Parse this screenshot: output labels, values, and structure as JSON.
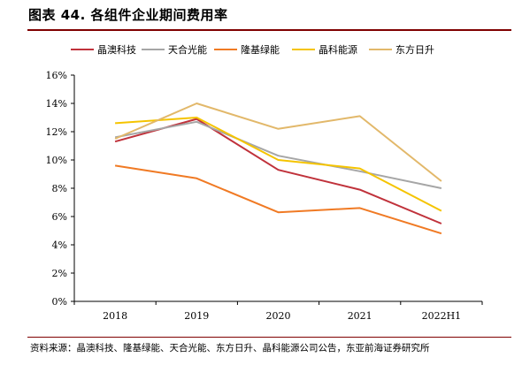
{
  "header": {
    "title": "图表 44. 各组件企业期间费用率"
  },
  "footer": {
    "source": "资料来源：晶澳科技、隆基绿能、天合光能、东方日升、晶科能源公司公告，东亚前海证券研究所"
  },
  "chart_data": {
    "type": "line",
    "categories": [
      "2018",
      "2019",
      "2020",
      "2021",
      "2022H1"
    ],
    "ylim": [
      0,
      16
    ],
    "yticks": [
      "0%",
      "2%",
      "4%",
      "6%",
      "8%",
      "10%",
      "12%",
      "14%",
      "16%"
    ],
    "ytick_values": [
      0,
      2,
      4,
      6,
      8,
      10,
      12,
      14,
      16
    ],
    "grid": false,
    "legend_position": "top",
    "series": [
      {
        "name": "晶澳科技",
        "color": "#c0323b",
        "values": [
          11.3,
          12.9,
          9.3,
          7.9,
          5.5
        ]
      },
      {
        "name": "天合光能",
        "color": "#a6a6a6",
        "values": [
          11.6,
          12.7,
          10.3,
          9.2,
          8.0
        ]
      },
      {
        "name": "隆基绿能",
        "color": "#f07a24",
        "values": [
          9.6,
          8.7,
          6.3,
          6.6,
          4.8
        ]
      },
      {
        "name": "晶科能源",
        "color": "#f5c400",
        "values": [
          12.6,
          13.0,
          10.0,
          9.4,
          6.4
        ]
      },
      {
        "name": "东方日升",
        "color": "#e2b86a",
        "values": [
          11.5,
          14.0,
          12.2,
          13.1,
          8.5
        ]
      }
    ]
  }
}
